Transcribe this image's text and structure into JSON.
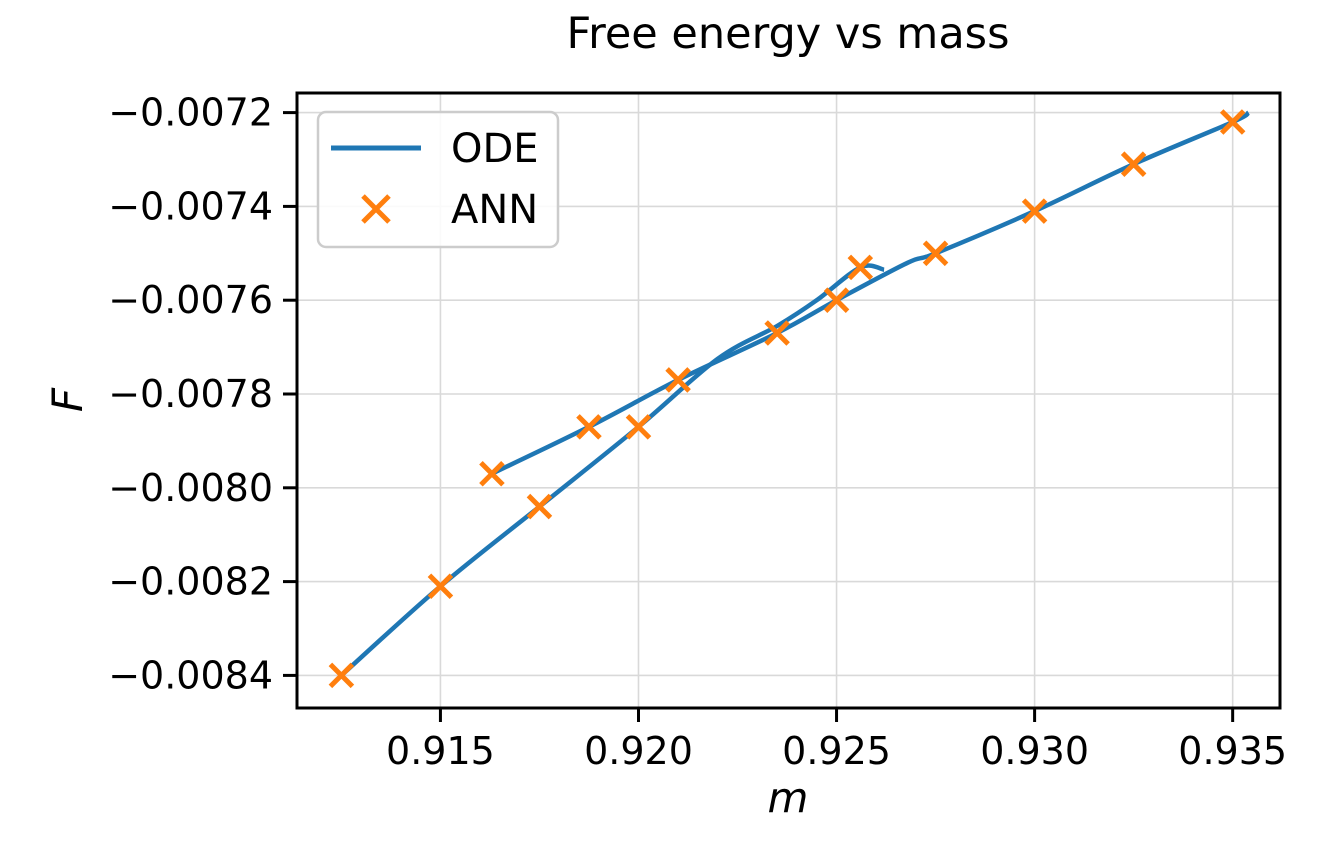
{
  "chart_data": {
    "type": "line",
    "title": "Free energy vs mass",
    "xlabel": "m",
    "ylabel": "F",
    "xlim": [
      0.911379,
      0.936195
    ],
    "ylim": [
      -0.0084695,
      -0.0071582
    ],
    "grid": true,
    "grid_color": "#d9d9d9",
    "background": "#ffffff",
    "spine_color": "#000000",
    "text_color": "#000000",
    "x_ticks": {
      "values": [
        0.915,
        0.92,
        0.925,
        0.93,
        0.935
      ],
      "labels": [
        "0.915",
        "0.920",
        "0.925",
        "0.930",
        "0.935"
      ]
    },
    "y_ticks": {
      "values": [
        -0.0072,
        -0.0074,
        -0.0076,
        -0.0078,
        -0.008,
        -0.0082,
        -0.0084
      ],
      "labels": [
        "−0.0072",
        "−0.0074",
        "−0.0076",
        "−0.0078",
        "−0.0080",
        "−0.0082",
        "−0.0084"
      ]
    },
    "legend": {
      "position": "upper left",
      "entries": [
        {
          "label": "ODE",
          "type": "line",
          "color": "#1f77b4"
        },
        {
          "label": "ANN",
          "type": "marker",
          "color": "#ff7f0e",
          "marker": "x"
        }
      ]
    },
    "series": [
      {
        "name": "ODE",
        "type": "line",
        "color": "#1f77b4",
        "line_width": 4.5,
        "segments": [
          [
            [
              0.9125,
              -0.0084
            ],
            [
              0.915,
              -0.00821
            ],
            [
              0.9175,
              -0.00804
            ],
            [
              0.92,
              -0.00787
            ],
            [
              0.922,
              -0.007725
            ],
            [
              0.9235,
              -0.007655
            ],
            [
              0.9245,
              -0.0076
            ],
            [
              0.9256,
              -0.00753
            ],
            [
              0.9262,
              -0.007535
            ]
          ],
          [
            [
              0.9163,
              -0.00797
            ],
            [
              0.91875,
              -0.00787
            ],
            [
              0.921,
              -0.00777
            ],
            [
              0.9235,
              -0.00767
            ],
            [
              0.925,
              -0.0076
            ],
            [
              0.9268,
              -0.00752
            ],
            [
              0.9275,
              -0.0075
            ],
            [
              0.93,
              -0.00741
            ],
            [
              0.9325,
              -0.00731
            ],
            [
              0.935,
              -0.00722
            ],
            [
              0.9354,
              -0.0072
            ]
          ]
        ]
      },
      {
        "name": "ANN",
        "type": "scatter",
        "marker": "x",
        "color": "#ff7f0e",
        "marker_size": 11,
        "marker_stroke": 5,
        "points": [
          [
            0.9125,
            -0.0084
          ],
          [
            0.915,
            -0.00821
          ],
          [
            0.9163,
            -0.00797
          ],
          [
            0.9175,
            -0.00804
          ],
          [
            0.91875,
            -0.00787
          ],
          [
            0.92,
            -0.00787
          ],
          [
            0.921,
            -0.00777
          ],
          [
            0.9235,
            -0.00767
          ],
          [
            0.925,
            -0.0076
          ],
          [
            0.9256,
            -0.00753
          ],
          [
            0.9275,
            -0.0075
          ],
          [
            0.93,
            -0.00741
          ],
          [
            0.9325,
            -0.00731
          ],
          [
            0.935,
            -0.00722
          ]
        ]
      }
    ]
  }
}
